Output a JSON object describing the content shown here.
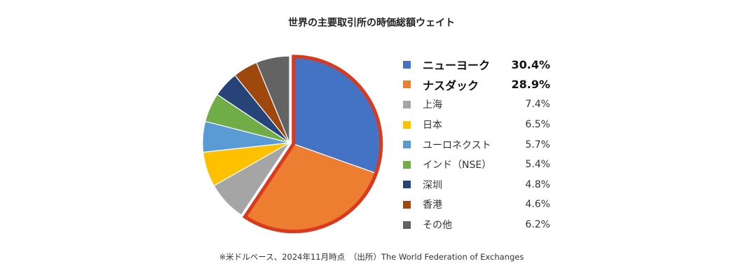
{
  "chart_data": {
    "type": "pie",
    "title": "世界の主要取引所の時価総額ウェイト",
    "unit": "%",
    "slices": [
      {
        "label": "ニューヨーク",
        "display": "30.4%",
        "value": 30.4,
        "color": "#4472C4",
        "bold": true,
        "highlight": true
      },
      {
        "label": "ナスダック",
        "display": "28.9%",
        "value": 28.9,
        "color": "#ED7D31",
        "bold": true,
        "highlight": true
      },
      {
        "label": "上海",
        "display": "7.4%",
        "value": 7.4,
        "color": "#A5A5A5",
        "bold": false,
        "highlight": false
      },
      {
        "label": "日本",
        "display": "6.5%",
        "value": 6.5,
        "color": "#FFC000",
        "bold": false,
        "highlight": false
      },
      {
        "label": "ユーロネクスト",
        "display": "5.7%",
        "value": 5.7,
        "color": "#5B9BD5",
        "bold": false,
        "highlight": false
      },
      {
        "label": "インド（NSE）",
        "display": "5.4%",
        "value": 5.4,
        "color": "#70AD47",
        "bold": false,
        "highlight": false
      },
      {
        "label": "深圳",
        "display": "4.8%",
        "value": 4.8,
        "color": "#264478",
        "bold": false,
        "highlight": false
      },
      {
        "label": "香港",
        "display": "4.6%",
        "value": 4.6,
        "color": "#9E480E",
        "bold": false,
        "highlight": false
      },
      {
        "label": "その他",
        "display": "6.2%",
        "value": 6.2,
        "color": "#636363",
        "bold": false,
        "highlight": false
      }
    ],
    "highlight_color": "#D93A1E",
    "legend_position": "right"
  },
  "footnote": "※米ドルベース、2024年11月時点　（出所）The World Federation of Exchanges"
}
